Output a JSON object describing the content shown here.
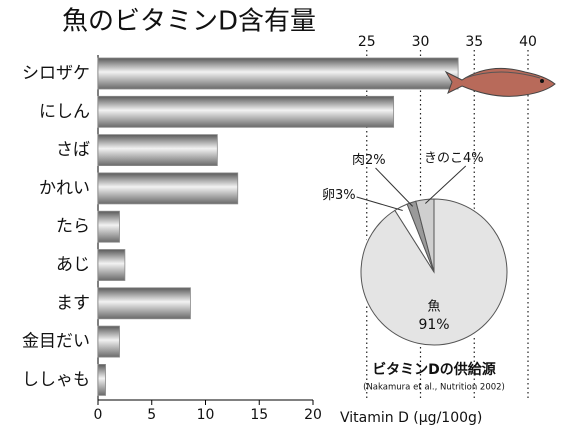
{
  "chart_data": [
    {
      "type": "hbar",
      "title": "魚のビタミンD含有量",
      "x_label": "Vitamin D (μg/100g)",
      "categories": [
        "シロザケ",
        "にしん",
        "さば",
        "かれい",
        "たら",
        "あじ",
        "ます",
        "金目だい",
        "ししゃも"
      ],
      "values": [
        33.5,
        27.5,
        11.1,
        13.0,
        2.0,
        2.5,
        8.6,
        2.0,
        0.7
      ],
      "color": "#8a8a8a",
      "xlim": [
        0,
        40
      ],
      "xticks_bottom": [
        0,
        5,
        10,
        15,
        20
      ],
      "xticks_top": [
        25,
        30,
        35,
        40
      ],
      "grid": true
    },
    {
      "type": "pie",
      "title": "ビタミンDの供給源",
      "subtitle": "(Nakamura et al., Nutrition 2002)",
      "labels": [
        "魚",
        "卵",
        "肉",
        "きのこ"
      ],
      "values": [
        91,
        3,
        2,
        4
      ],
      "value_labels": [
        "91%",
        "3%",
        "2%",
        "4%"
      ],
      "colors": [
        "#e4e4e4",
        "#ffffff",
        "#9a9a9a",
        "#cfcfcf"
      ]
    }
  ]
}
